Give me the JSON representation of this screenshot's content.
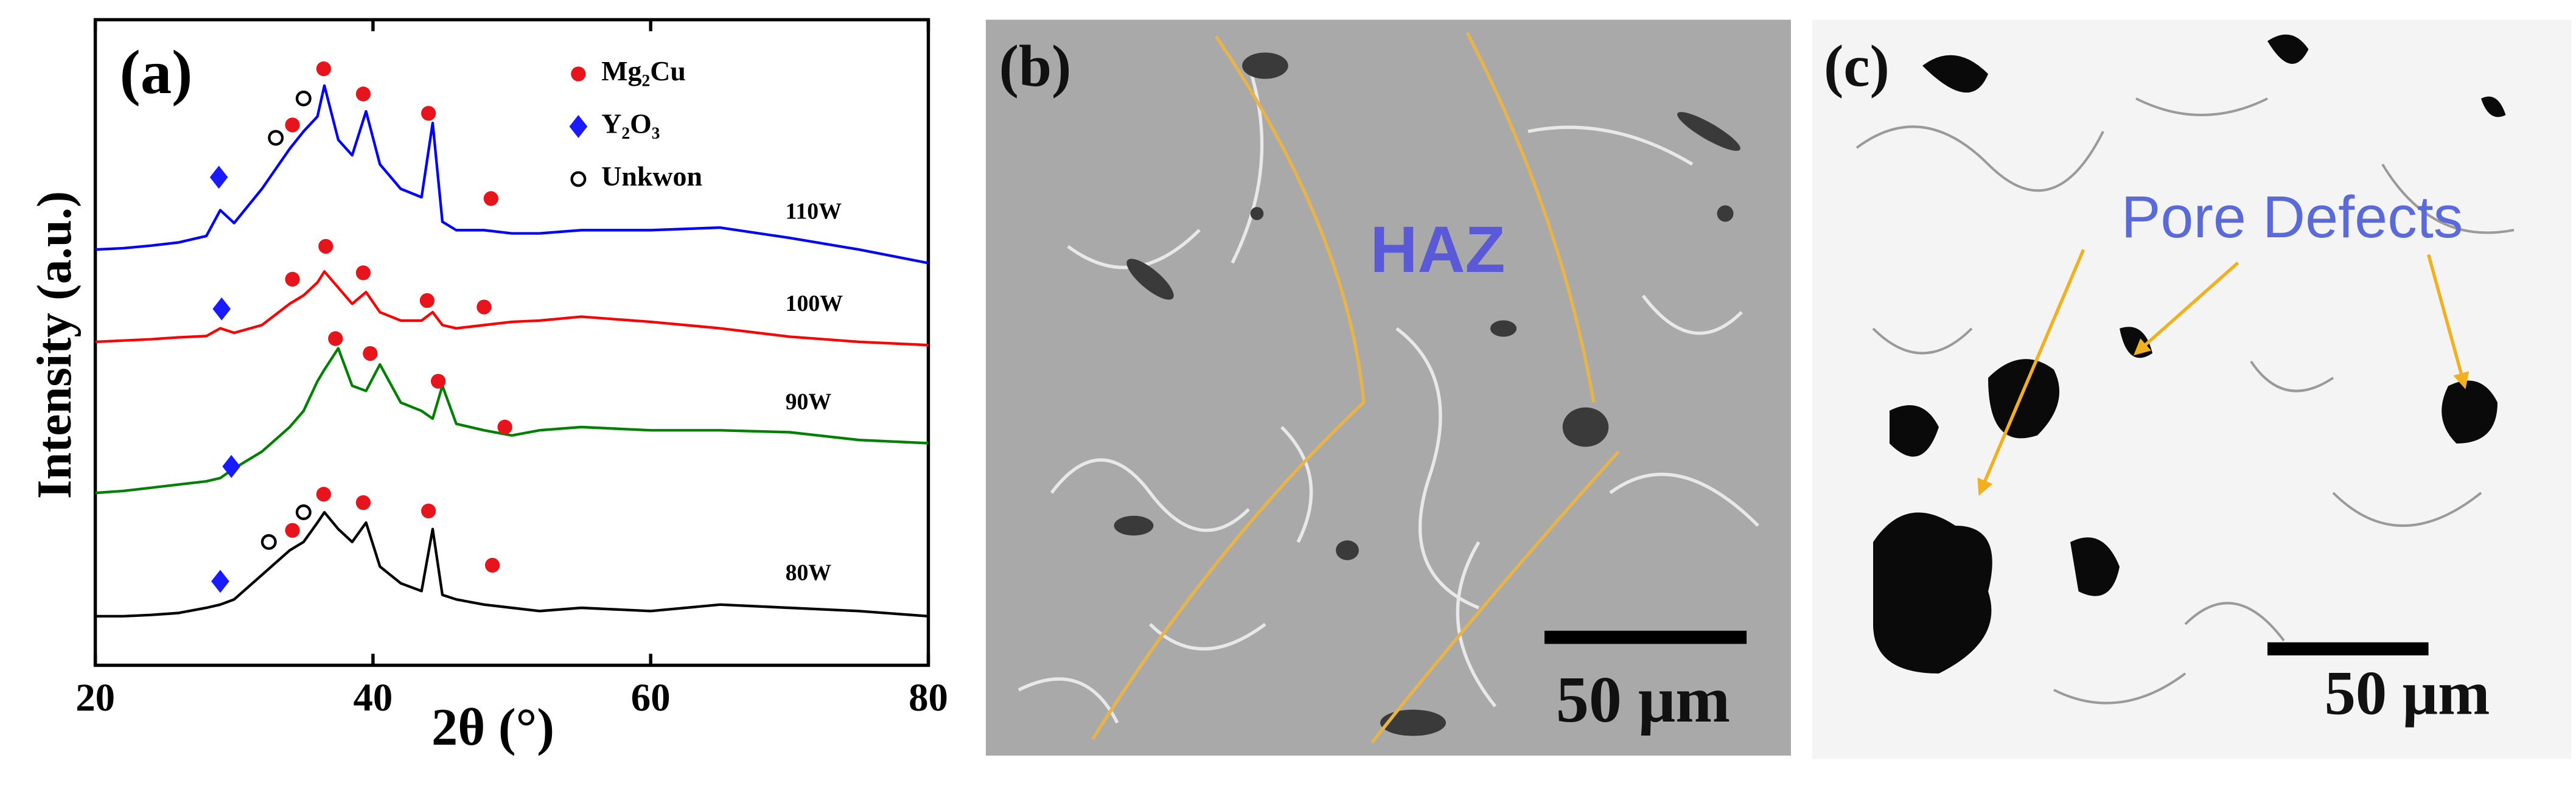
{
  "chart_data": {
    "type": "line",
    "panel_label": "(a)",
    "x_label": "2θ (°)",
    "y_label": "Intensity (a.u.)",
    "xlim": [
      20,
      80
    ],
    "xticks": [
      20,
      40,
      60,
      80
    ],
    "ylim": [
      0,
      100
    ],
    "x": [
      20,
      22,
      24,
      26,
      28,
      29,
      30,
      32,
      34,
      35,
      36,
      36.5,
      37.5,
      38.5,
      39.5,
      40.5,
      42,
      43.5,
      44.3,
      45,
      46,
      48,
      50,
      52,
      55,
      60,
      65,
      70,
      75,
      80
    ],
    "series": [
      {
        "name": "110W",
        "color": "#0000ff",
        "values": [
          64.4,
          64.6,
          65,
          65.5,
          66.5,
          70.5,
          68.5,
          73.8,
          80,
          82.7,
          85,
          89.8,
          81.4,
          79,
          85.8,
          77.6,
          73.8,
          72.5,
          84,
          68.7,
          67.4,
          67.4,
          66.9,
          66.9,
          67.4,
          67.4,
          67.8,
          66.2,
          64.4,
          62.3
        ]
      },
      {
        "name": "100W",
        "color": "#ff0000",
        "values": [
          50.1,
          50.3,
          50.5,
          50.8,
          51,
          52.2,
          51.5,
          52.7,
          56,
          57.3,
          59.3,
          61,
          58.5,
          56,
          57.8,
          54.7,
          53.4,
          53.4,
          54.7,
          52.7,
          52.2,
          52.7,
          53.2,
          53.4,
          54,
          53.2,
          52.2,
          50.9,
          50.1,
          49.6
        ]
      },
      {
        "name": "90W",
        "color": "#008000",
        "values": [
          26.7,
          27,
          27.5,
          28,
          28.5,
          29,
          30.5,
          33.1,
          36.9,
          39.4,
          44,
          45.8,
          49.1,
          43.3,
          42.5,
          46.6,
          40.7,
          39.4,
          38.2,
          43.3,
          37.4,
          36.4,
          35.6,
          36.4,
          36.9,
          36.4,
          36.4,
          36.1,
          34.9,
          34.4
        ]
      },
      {
        "name": "80W",
        "color": "#000000",
        "values": [
          7.6,
          7.6,
          7.8,
          8.1,
          8.9,
          9.4,
          10.2,
          14,
          17.8,
          19.1,
          22.1,
          23.7,
          21.1,
          19.1,
          22.1,
          15.3,
          12.7,
          11.5,
          21.1,
          10.9,
          10.2,
          9.4,
          8.9,
          8.4,
          8.9,
          8.4,
          9.4,
          8.9,
          8.4,
          7.6
        ]
      }
    ],
    "markers": [
      {
        "name": "Mg₂Cu",
        "color": "#e8141b",
        "shape": "circle",
        "x": [
          36.45,
          39.3,
          44.0,
          48.5,
          34.2,
          34.2,
          36.6,
          39.3,
          43.9,
          48.0,
          37.3,
          39.8,
          44.7,
          49.5,
          34.2,
          36.45,
          39.3,
          44.0,
          48.6
        ],
        "y": [
          92.4,
          88.5,
          85.5,
          72.3,
          83.7,
          59.8,
          64.9,
          60.8,
          56.5,
          55.5,
          50.6,
          48.3,
          44.0,
          36.9,
          20.9,
          26.5,
          25.2,
          23.9,
          15.5
        ]
      },
      {
        "name": "Y₂O₃",
        "color": "#1a1aff",
        "shape": "diamond",
        "x": [
          28.9,
          29.1,
          29.8,
          29.0
        ],
        "y": [
          75.6,
          55.2,
          30.8,
          13.0
        ]
      },
      {
        "name": "Unkwon",
        "color": "#000000",
        "shape": "open-circle",
        "x": [
          33.0,
          35.0,
          32.5,
          35.0
        ],
        "y": [
          81.7,
          87.8,
          19.1,
          23.7
        ]
      }
    ]
  },
  "panels": {
    "b": {
      "label": "(b)",
      "annotation": "HAZ",
      "scale_bar": "50 μm"
    },
    "c": {
      "label": "(c)",
      "annotation": "Pore Defects",
      "scale_bar": "50 μm"
    }
  }
}
